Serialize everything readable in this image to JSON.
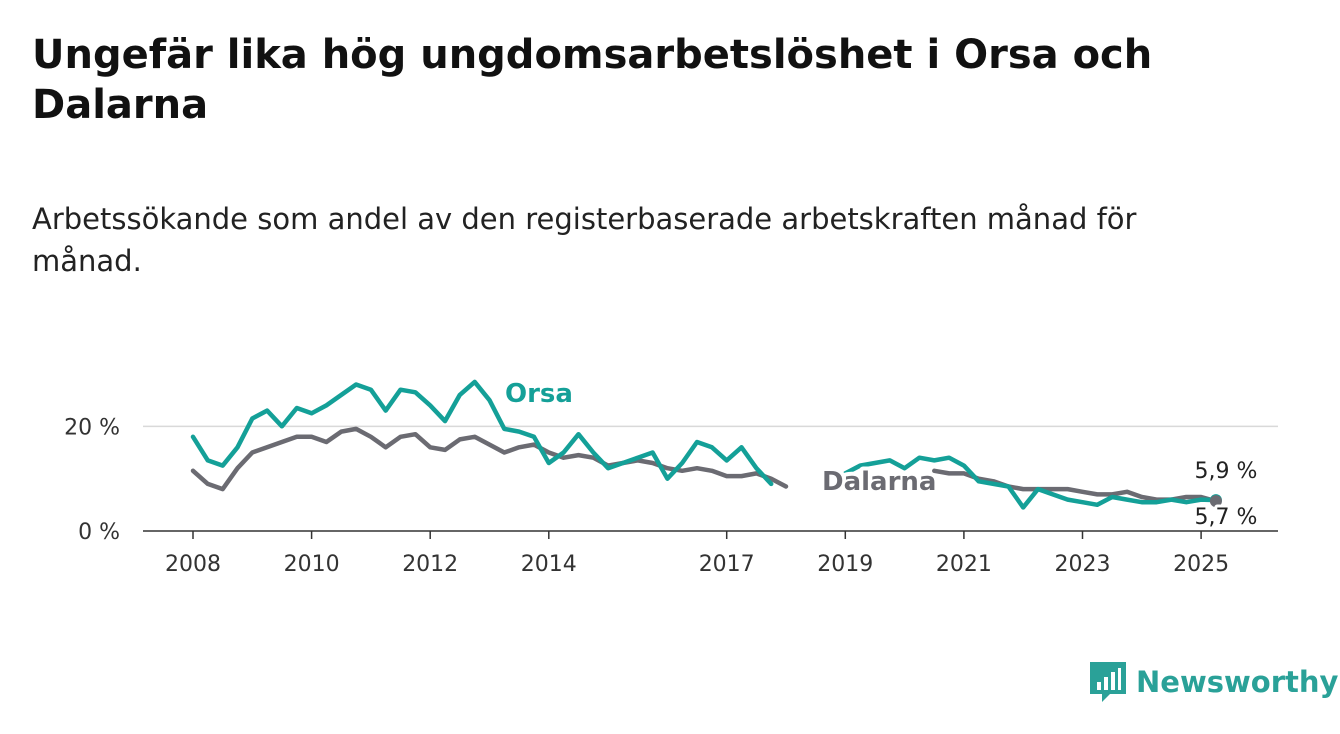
{
  "header": {
    "title": "Ungefär lika hög ungdomsarbetslöshet i Orsa och Dalarna",
    "subtitle": "Arbetssökande som andel av den registerbaserade arbetskraften månad för månad."
  },
  "brand": {
    "name": "Newsworthy",
    "color": "#2aa198"
  },
  "chart_data": {
    "type": "line",
    "title": "Ungefär lika hög ungdomsarbetslöshet i Orsa och Dalarna",
    "subtitle": "Arbetssökande som andel av den registerbaserade arbetskraften månad för månad.",
    "x_ticks": [
      "2008",
      "2010",
      "2012",
      "2014",
      "2017",
      "2019",
      "2021",
      "2023",
      "2025"
    ],
    "y_ticks": [
      "0 %",
      "20 %"
    ],
    "ylim": [
      0,
      30
    ],
    "xlim": [
      2007.2,
      2026.1
    ],
    "grid": "horizontal",
    "end_labels": {
      "Orsa": "5,9 %",
      "Dalarna": "5,7 %"
    },
    "series": [
      {
        "name": "Orsa",
        "color": "#14a098",
        "x": [
          2008.0,
          2008.25,
          2008.5,
          2008.75,
          2009.0,
          2009.25,
          2009.5,
          2009.75,
          2010.0,
          2010.25,
          2010.5,
          2010.75,
          2011.0,
          2011.25,
          2011.5,
          2011.75,
          2012.0,
          2012.25,
          2012.5,
          2012.75,
          2013.0,
          2013.25,
          2013.5,
          2013.75,
          2014.0,
          2014.25,
          2014.5,
          2014.75,
          2015.0,
          2015.25,
          2015.5,
          2015.75,
          2016.0,
          2016.25,
          2016.5,
          2016.75,
          2017.0,
          2017.25,
          2017.5,
          2017.75,
          2018.0,
          2018.25,
          2018.5,
          2018.75,
          2019.0,
          2019.25,
          2019.5,
          2019.75,
          2020.0,
          2020.25,
          2020.5,
          2020.75,
          2021.0,
          2021.25,
          2021.5,
          2021.75,
          2022.0,
          2022.25,
          2022.5,
          2022.75,
          2023.0,
          2023.25,
          2023.5,
          2023.75,
          2024.0,
          2024.25,
          2024.5,
          2024.75,
          2025.0,
          2025.25
        ],
        "values": [
          18,
          13.5,
          12.5,
          16,
          21.5,
          23,
          20,
          23.5,
          22.5,
          24,
          26,
          28,
          27,
          23,
          27,
          26.5,
          24,
          21,
          26,
          28.5,
          25,
          19.5,
          19,
          18,
          13,
          15,
          18.5,
          15,
          12,
          13,
          14,
          15,
          10,
          13,
          17,
          16,
          13.5,
          16,
          12,
          9,
          null,
          10,
          null,
          null,
          11,
          12.5,
          13,
          13.5,
          12,
          14,
          13.5,
          14,
          12.5,
          9.5,
          9,
          8.5,
          4.5,
          8,
          7,
          6,
          5.5,
          5,
          6.5,
          6,
          5.5,
          5.5,
          6,
          5.5,
          6,
          5.9
        ]
      },
      {
        "name": "Dalarna",
        "color": "#6b6b72",
        "x": [
          2008.0,
          2008.25,
          2008.5,
          2008.75,
          2009.0,
          2009.25,
          2009.5,
          2009.75,
          2010.0,
          2010.25,
          2010.5,
          2010.75,
          2011.0,
          2011.25,
          2011.5,
          2011.75,
          2012.0,
          2012.25,
          2012.5,
          2012.75,
          2013.0,
          2013.25,
          2013.5,
          2013.75,
          2014.0,
          2014.25,
          2014.5,
          2014.75,
          2015.0,
          2015.25,
          2015.5,
          2015.75,
          2016.0,
          2016.25,
          2016.5,
          2016.75,
          2017.0,
          2017.25,
          2017.5,
          2017.75,
          2018.0,
          2018.25,
          2018.5,
          2018.75,
          2019.0,
          2019.25,
          2019.5,
          2019.75,
          2020.0,
          2020.25,
          2020.5,
          2020.75,
          2021.0,
          2021.25,
          2021.5,
          2021.75,
          2022.0,
          2022.25,
          2022.5,
          2022.75,
          2023.0,
          2023.25,
          2023.5,
          2023.75,
          2024.0,
          2024.25,
          2024.5,
          2024.75,
          2025.0,
          2025.25
        ],
        "values": [
          11.5,
          9,
          8,
          12,
          15,
          16,
          17,
          18,
          18,
          17,
          19,
          19.5,
          18,
          16,
          18,
          18.5,
          16,
          15.5,
          17.5,
          18,
          16.5,
          15,
          16,
          16.5,
          15,
          14,
          14.5,
          14,
          12.5,
          13,
          13.5,
          13,
          12,
          11.5,
          12,
          11.5,
          10.5,
          10.5,
          11,
          10,
          8.5,
          null,
          null,
          null,
          null,
          null,
          null,
          null,
          null,
          null,
          11.5,
          11,
          11,
          10,
          9.5,
          8.5,
          8,
          8,
          8,
          8,
          7.5,
          7,
          7,
          7.5,
          6.5,
          6,
          6,
          6.5,
          6.5,
          5.7
        ]
      }
    ]
  }
}
